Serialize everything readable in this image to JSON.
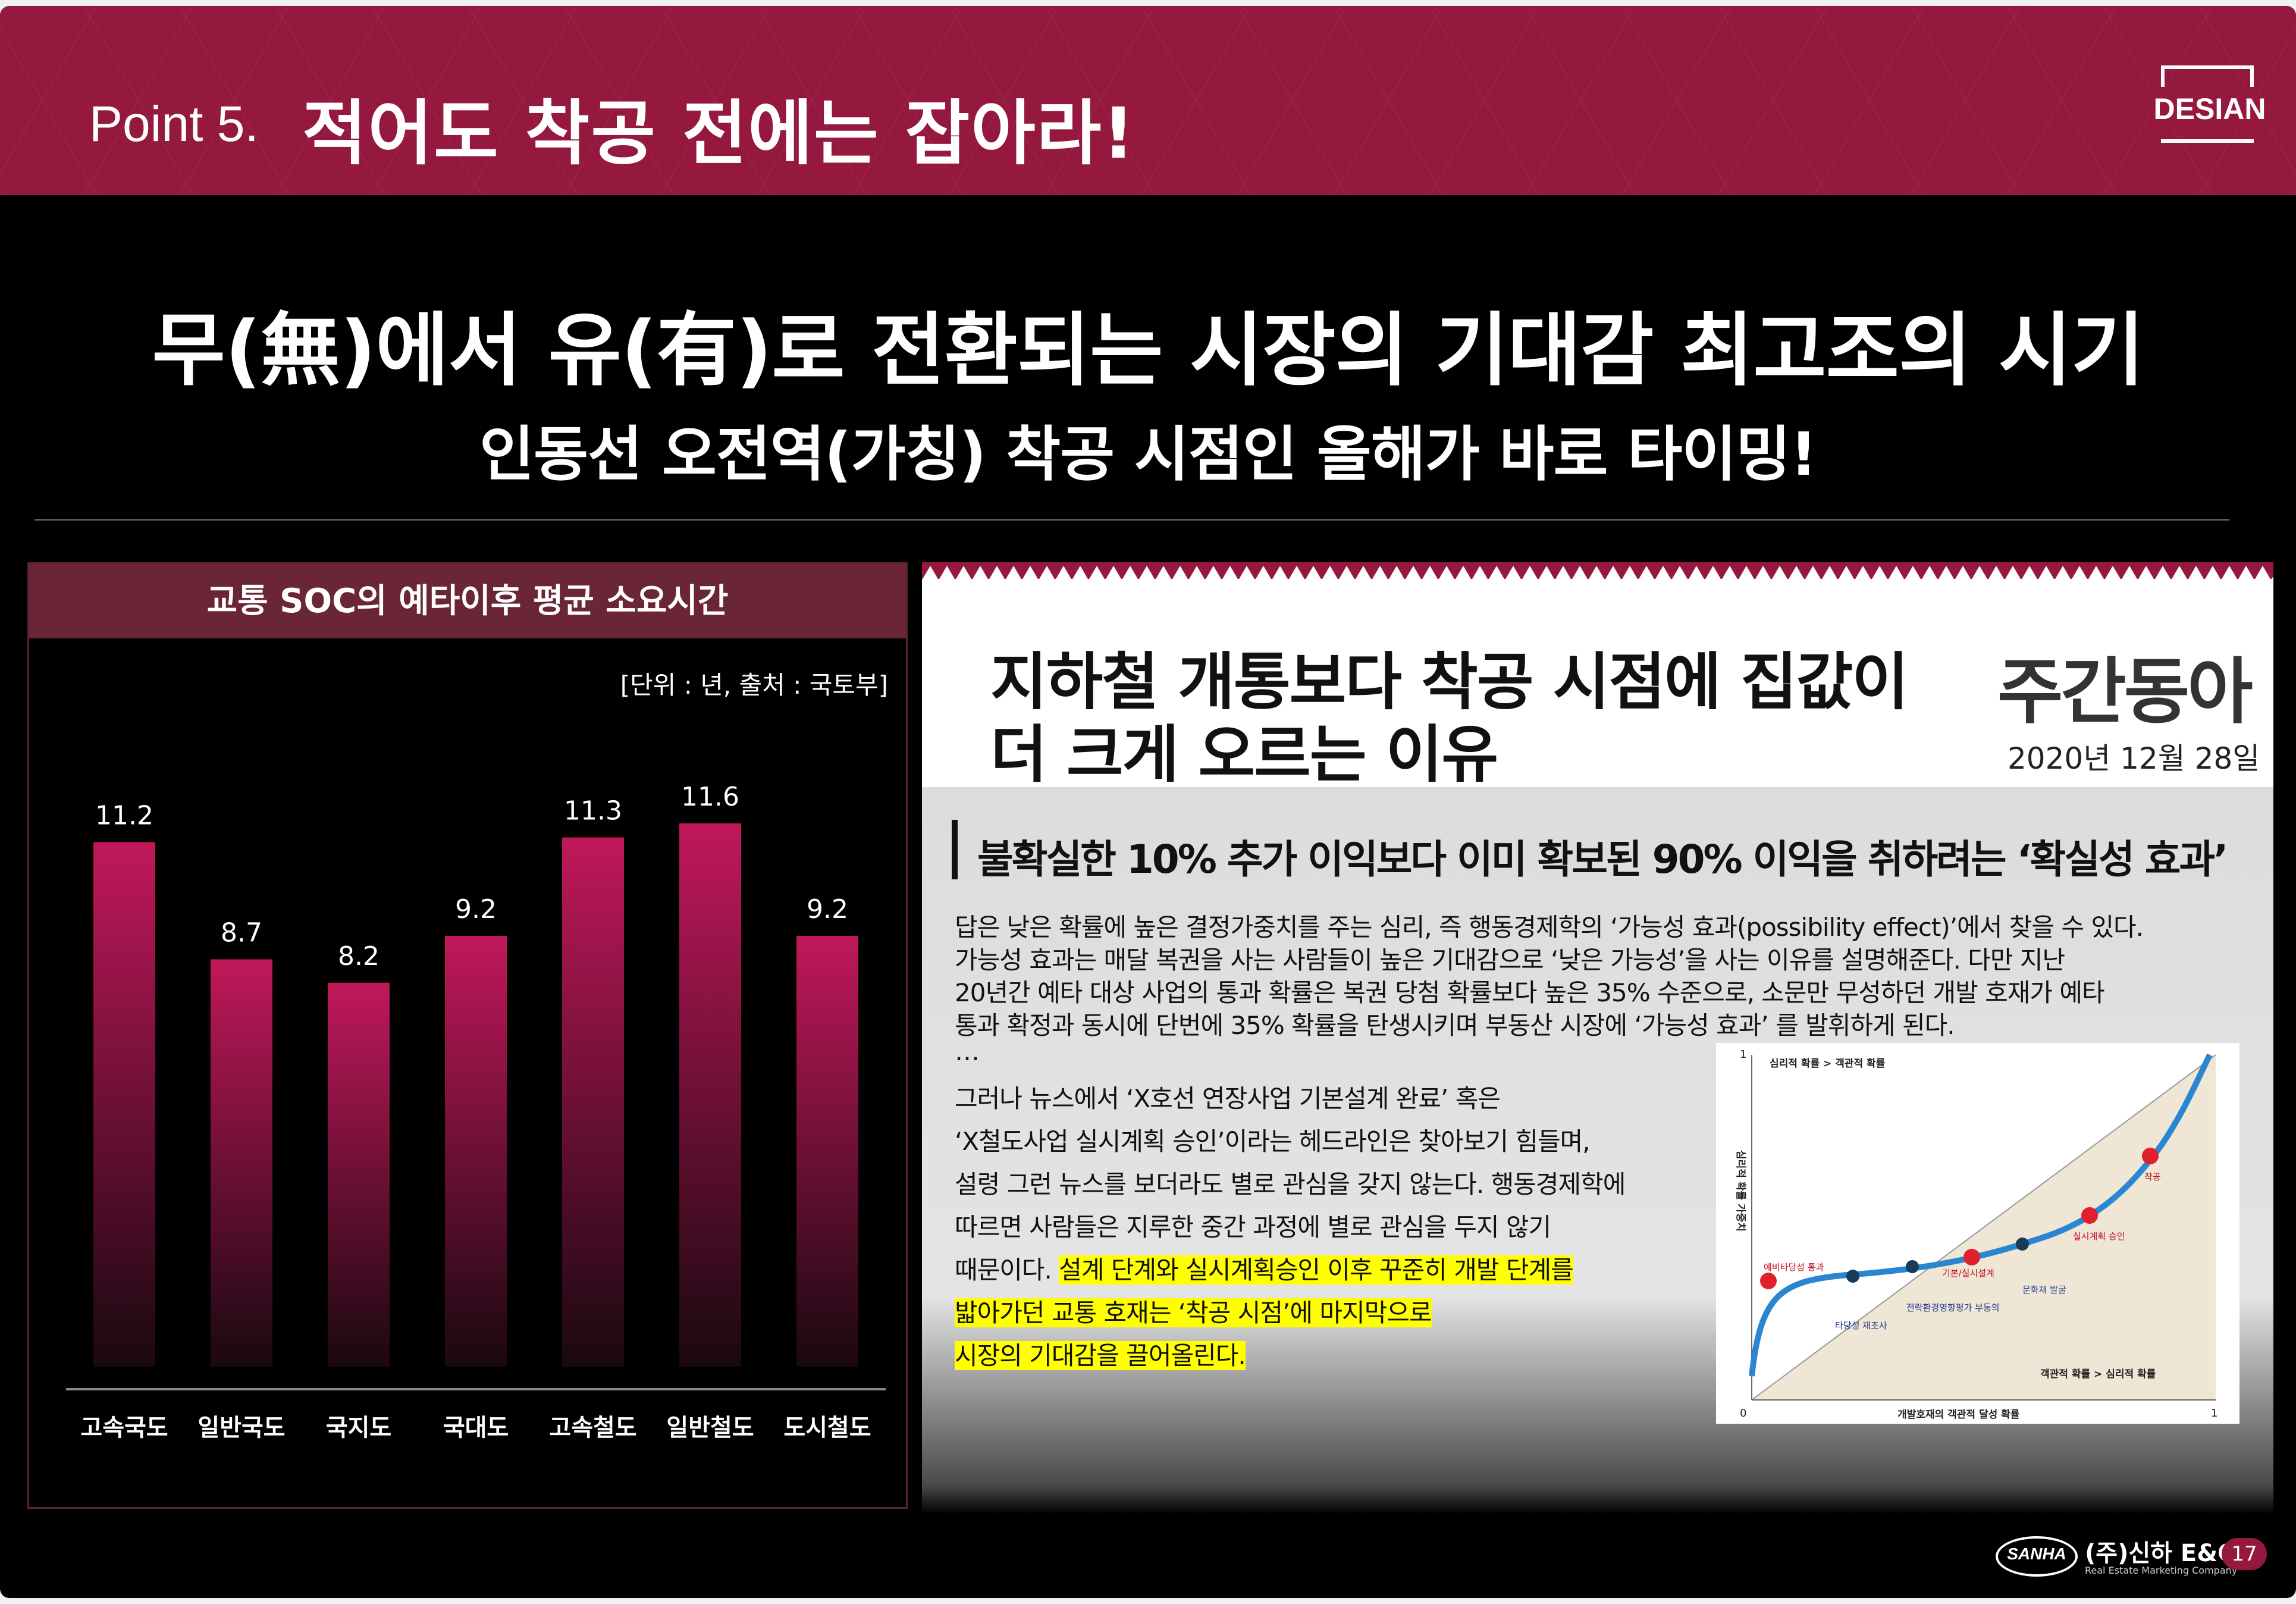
{
  "header": {
    "point_label": "Point 5.",
    "title": "적어도 착공 전에는 잡아라!",
    "brand": "DESIAN"
  },
  "headline": {
    "line1": "무(無)에서 유(有)로 전환되는 시장의 기대감 최고조의 시기",
    "line2": "인동선 오전역(가칭) 착공 시점인 올해가 바로 타이밍!"
  },
  "chart_data": {
    "type": "bar",
    "title": "교통 SOC의 예타이후 평균 소요시간",
    "unit_note": "[단위 : 년, 출처 : 국토부]",
    "categories": [
      "고속국도",
      "일반국도",
      "국지도",
      "국대도",
      "고속철도",
      "일반철도",
      "도시철도"
    ],
    "values": [
      11.2,
      8.7,
      8.2,
      9.2,
      11.3,
      11.6,
      9.2
    ],
    "ylim": [
      0,
      12.5
    ],
    "grid": false,
    "colors": {
      "bar_top": "#c0185a",
      "bar_bottom": "#1a0810"
    }
  },
  "article": {
    "title_line1": "지하철 개통보다 착공 시점에 집값이",
    "title_line2": "더 크게 오르는 이유",
    "publisher": "주간동아",
    "date": "2020년 12월 28일",
    "subhead": "불확실한 10% 추가 이익보다 이미 확보된 90% 이익을 취하려는 ‘확실성 효과’",
    "para1": [
      "답은 낮은 확률에 높은 결정가중치를 주는 심리, 즉 행동경제학의 ‘가능성 효과(possibility effect)’에서 찾을 수 있다.",
      "가능성 효과는 매달 복권을 사는 사람들이 높은 기대감으로 ‘낮은 가능성’을 사는 이유를 설명해준다. 다만 지난",
      "20년간 예타 대상 사업의 통과 확률은 복권 당첨 확률보다 높은 35% 수준으로, 소문만 무성하던 개발 호재가 예타",
      "통과 확정과 동시에 단번에 35% 확률을 탄생시키며 부동산 시장에 ‘가능성 효과’ 를 발휘하게 된다."
    ],
    "ellipsis": "…",
    "para2": [
      "그러나 뉴스에서 ‘X호선 연장사업 기본설계 완료’ 혹은",
      "‘X철도사업 실시계획 승인’이라는 헤드라인은 찾아보기 힘들며,",
      "설령 그런 뉴스를 보더라도 별로 관심을 갖지 않는다. 행동경제학에",
      " 따르면 사람들은 지루한 중간 과정에 별로 관심을 두지 않기"
    ],
    "para2_tail_plain": "때문이다. ",
    "para2_tail_highlight": "설계 단계와 실시계획승인 이후 꾸준히 개발 단계를",
    "highlight_lines": [
      "밟아가던 교통 호재는 ‘착공 시점’에 마지막으로",
      "시장의 기대감을 끌어올린다."
    ]
  },
  "diagram": {
    "top_label": "심리적 확률 > 객관적 확률",
    "bottom_label": "객관적 확률 > 심리적 확률",
    "y_axis": "심리적 확률 가중치",
    "x_axis": "개발호재의 객관적 달성 확률",
    "y_max": "1",
    "origin": "0",
    "x_max": "1",
    "points": [
      "예비타당성 통과",
      "타당성 재조사",
      "전략환경영향평가 부동의",
      "기본/실시설계",
      "문화재 발굴",
      "실시계획 승인",
      "착공"
    ]
  },
  "footer": {
    "logo": "SANHA",
    "company": "(주)신하 E&C",
    "company_sub": "Real Estate Marketing Company",
    "page": "17"
  }
}
